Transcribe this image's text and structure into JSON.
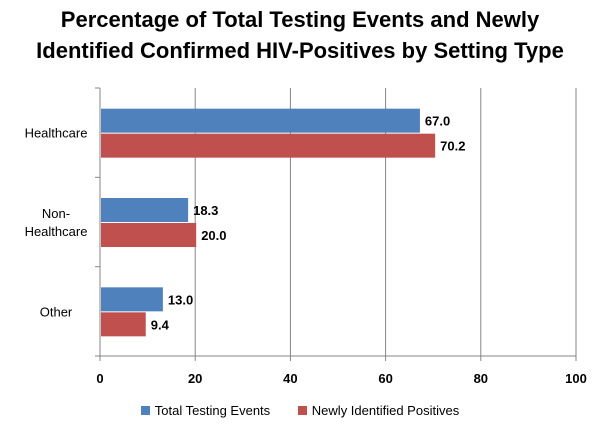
{
  "chart_data": {
    "type": "bar",
    "orientation": "horizontal",
    "title_lines": [
      "Percentage of Total Testing Events and Newly",
      "Identified Confirmed HIV-Positives by Setting Type"
    ],
    "categories": [
      "Healthcare",
      "Non-Healthcare",
      "Other"
    ],
    "category_lines": [
      [
        "Healthcare"
      ],
      [
        "Non-",
        "Healthcare"
      ],
      [
        "Other"
      ]
    ],
    "series": [
      {
        "name": "Total Testing Events",
        "color": "#4F81BD",
        "values": [
          67.0,
          18.3,
          13.0
        ],
        "labels": [
          "67.0",
          "18.3",
          "13.0"
        ]
      },
      {
        "name": "Newly Identified Positives",
        "color": "#C0504D",
        "values": [
          70.2,
          20.0,
          9.4
        ],
        "labels": [
          "70.2",
          "20.0",
          "9.4"
        ]
      }
    ],
    "xlim": [
      0,
      100
    ],
    "xticks": [
      "0",
      "20",
      "40",
      "60",
      "80",
      "100"
    ],
    "grid": true,
    "legend": "bottom"
  }
}
